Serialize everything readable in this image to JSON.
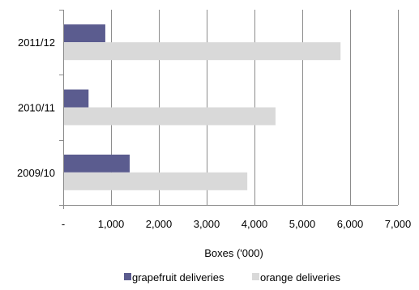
{
  "chart_data": {
    "type": "bar",
    "orientation": "horizontal",
    "categories": [
      "2009/10",
      "2010/11",
      "2011/12"
    ],
    "series": [
      {
        "name": "grapefruit deliveries",
        "values": [
          1390,
          530,
          880
        ],
        "color": "#5b5c8f"
      },
      {
        "name": "orange deliveries",
        "values": [
          3850,
          4440,
          5800
        ],
        "color": "#d9d9d9"
      }
    ],
    "xlabel": "Boxes ('000)",
    "ylabel": "",
    "xlim": [
      0,
      7000
    ],
    "xticks": [
      0,
      1000,
      2000,
      3000,
      4000,
      5000,
      6000,
      7000
    ],
    "xtick_labels": [
      "-",
      "1,000",
      "2,000",
      "3,000",
      "4,000",
      "5,000",
      "6,000",
      "7,000"
    ],
    "grid": "vertical",
    "legend_position": "bottom"
  }
}
